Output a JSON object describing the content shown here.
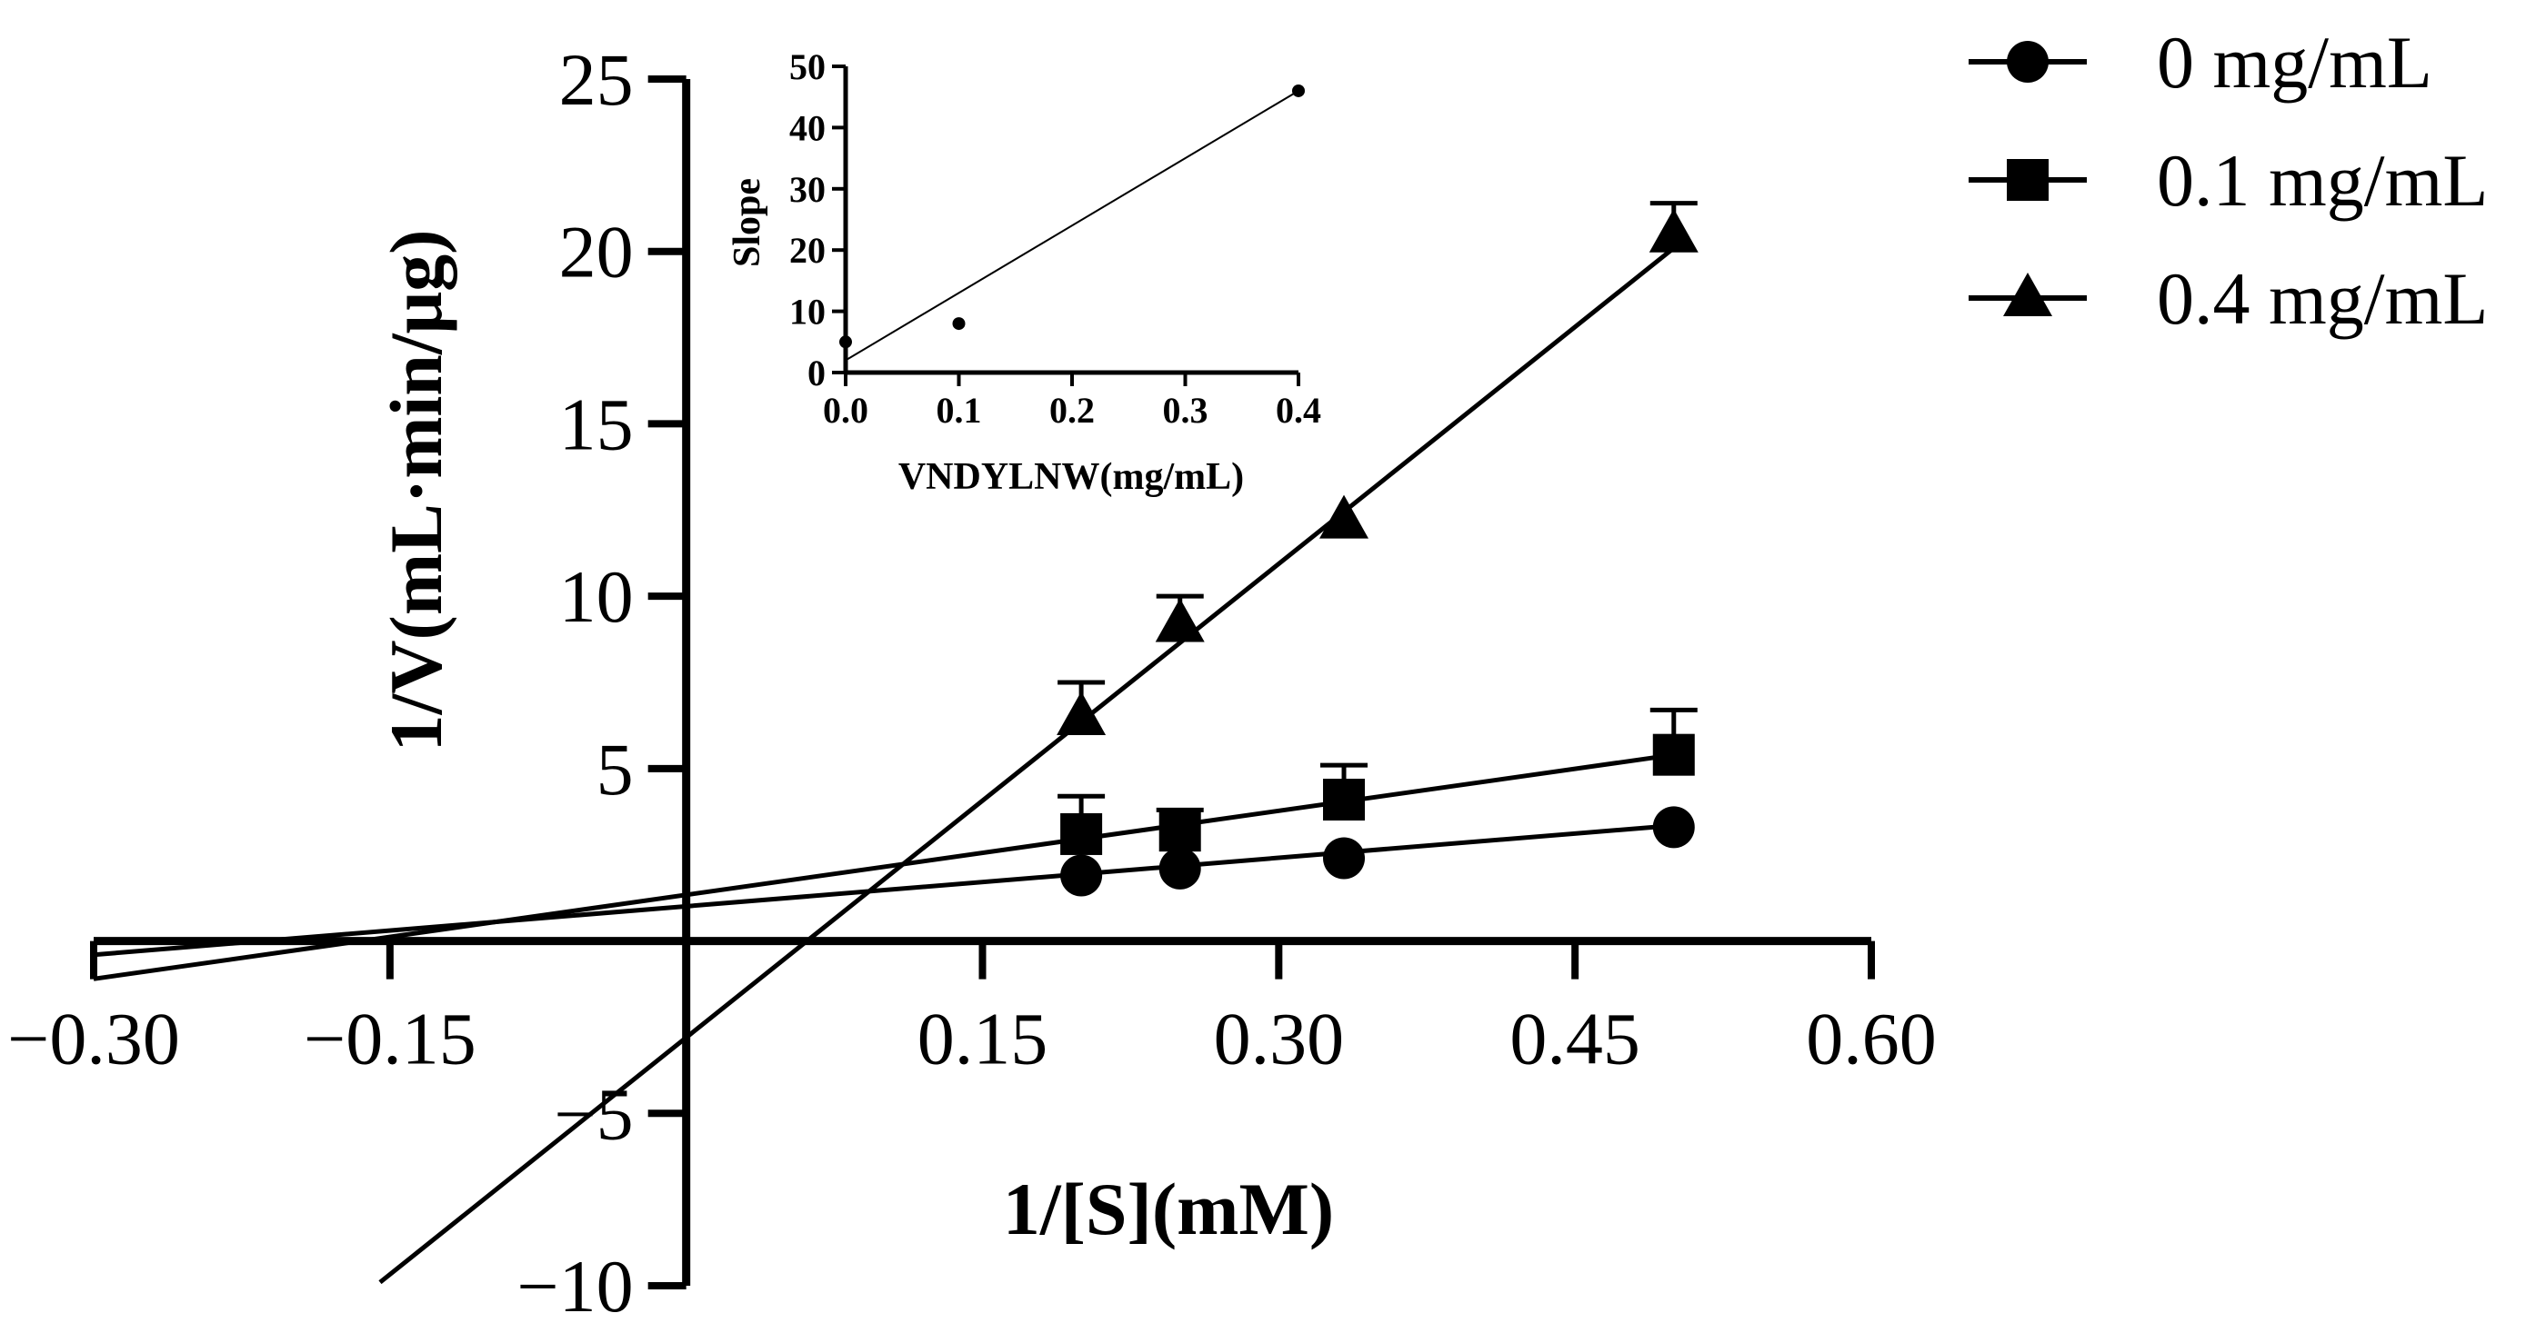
{
  "chart_data": [
    {
      "type": "line",
      "title": "",
      "xlabel": "1/[S](mM)",
      "ylabel": "1/V(mL·min/μg)",
      "xlim": [
        -0.3,
        0.6
      ],
      "ylim": [
        -10,
        25
      ],
      "xticks": [
        -0.3,
        -0.15,
        0.15,
        0.3,
        0.45,
        0.6
      ],
      "xtick_labels": [
        "−0.30",
        "−0.15",
        "0.15",
        "0.30",
        "0.45",
        "0.60"
      ],
      "yticks": [
        -10,
        -5,
        5,
        10,
        15,
        20,
        25
      ],
      "ytick_labels": [
        "−10",
        "−5",
        "5",
        "10",
        "15",
        "20",
        "25"
      ],
      "series": [
        {
          "name": "0 mg/mL",
          "marker": "circle",
          "x": [
            0.2,
            0.25,
            0.333,
            0.5
          ],
          "y": [
            1.9,
            2.1,
            2.4,
            3.3
          ],
          "err": [
            0,
            0,
            0,
            0
          ],
          "fit": {
            "x": [
              -0.3,
              0.5
            ],
            "y": [
              -0.4,
              3.35
            ]
          }
        },
        {
          "name": "0.1 mg/mL",
          "marker": "square",
          "x": [
            0.2,
            0.25,
            0.333,
            0.5
          ],
          "y": [
            3.1,
            3.2,
            4.1,
            5.4
          ],
          "err": [
            1.1,
            0.6,
            1.0,
            1.3
          ],
          "fit": {
            "x": [
              -0.3,
              0.5
            ],
            "y": [
              -1.1,
              5.4
            ]
          }
        },
        {
          "name": "0.4 mg/mL",
          "marker": "triangle",
          "x": [
            0.2,
            0.25,
            0.333,
            0.5
          ],
          "y": [
            6.5,
            9.2,
            12.2,
            20.5
          ],
          "err": [
            1.0,
            0.8,
            0,
            0.9
          ],
          "fit": {
            "x": [
              -0.155,
              0.5
            ],
            "y": [
              -9.9,
              20.1
            ]
          }
        }
      ]
    },
    {
      "type": "scatter",
      "title": "",
      "xlabel": "VNDYLNW(mg/mL)",
      "ylabel": "Slope",
      "xlim": [
        0.0,
        0.4
      ],
      "ylim": [
        0,
        50
      ],
      "xticks": [
        0.0,
        0.1,
        0.2,
        0.3,
        0.4
      ],
      "xtick_labels": [
        "0.0",
        "0.1",
        "0.2",
        "0.3",
        "0.4"
      ],
      "yticks": [
        0,
        10,
        20,
        30,
        40,
        50
      ],
      "ytick_labels": [
        "0",
        "10",
        "20",
        "30",
        "40",
        "50"
      ],
      "points": {
        "x": [
          0.0,
          0.1,
          0.4
        ],
        "y": [
          5,
          8,
          46
        ]
      },
      "fit": {
        "x": [
          0.0,
          0.4
        ],
        "y": [
          2,
          46
        ]
      }
    }
  ]
}
